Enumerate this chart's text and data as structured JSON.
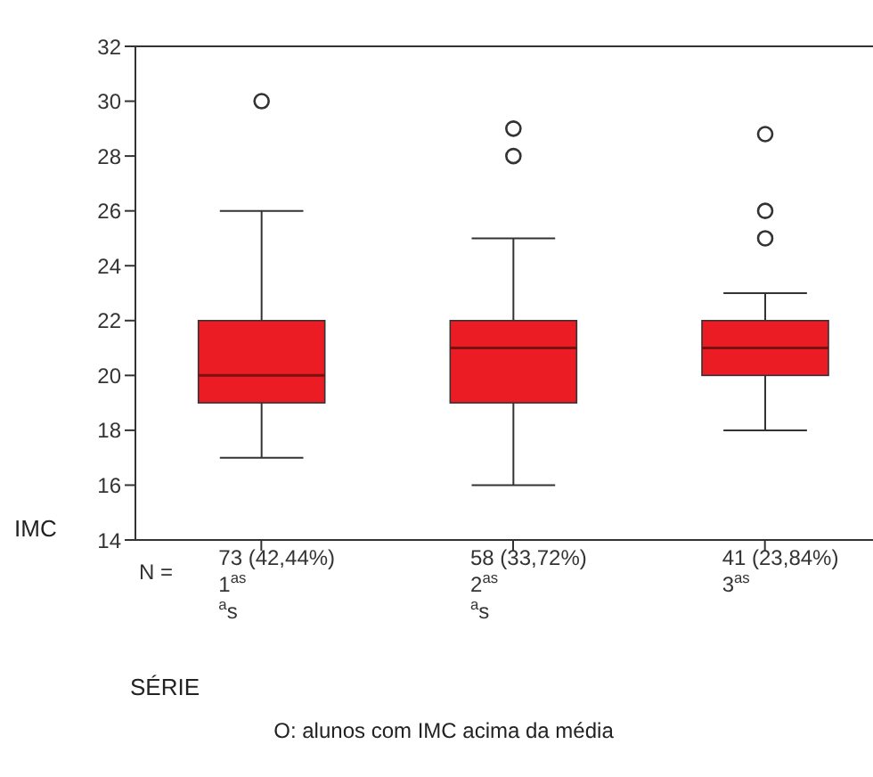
{
  "chart_data": {
    "type": "box",
    "xlabel": "SÉRIE",
    "ylabel": "IMC",
    "categories": [
      "73 (42,44%)\n1$^{as}$\n$^{a}$s",
      "58 (33,72%)\n2$^{as}$\n$^{a}$s",
      "41 (23,84%)\n3$^{as}$"
    ],
    "color": "#ec1c24",
    "boxes": [
      {
        "low": 17,
        "q1": 19,
        "median": 20,
        "q3": 22,
        "high": 26,
        "outliers": [
          30
        ]
      },
      {
        "low": 16,
        "q1": 19,
        "median": 21,
        "q3": 22,
        "high": 25,
        "outliers": [
          29,
          28
        ]
      },
      {
        "low": 18,
        "q1": 20,
        "median": 21,
        "q3": 22,
        "high": 23,
        "outliers": [
          28.8,
          26,
          25
        ]
      }
    ],
    "ylim": [
      14,
      32
    ],
    "yticks": [
      14,
      16,
      18,
      20,
      22,
      24,
      26,
      28,
      30,
      32
    ],
    "annotations": [
      "N =",
      "O: alunos com IMC acima da média"
    ]
  }
}
